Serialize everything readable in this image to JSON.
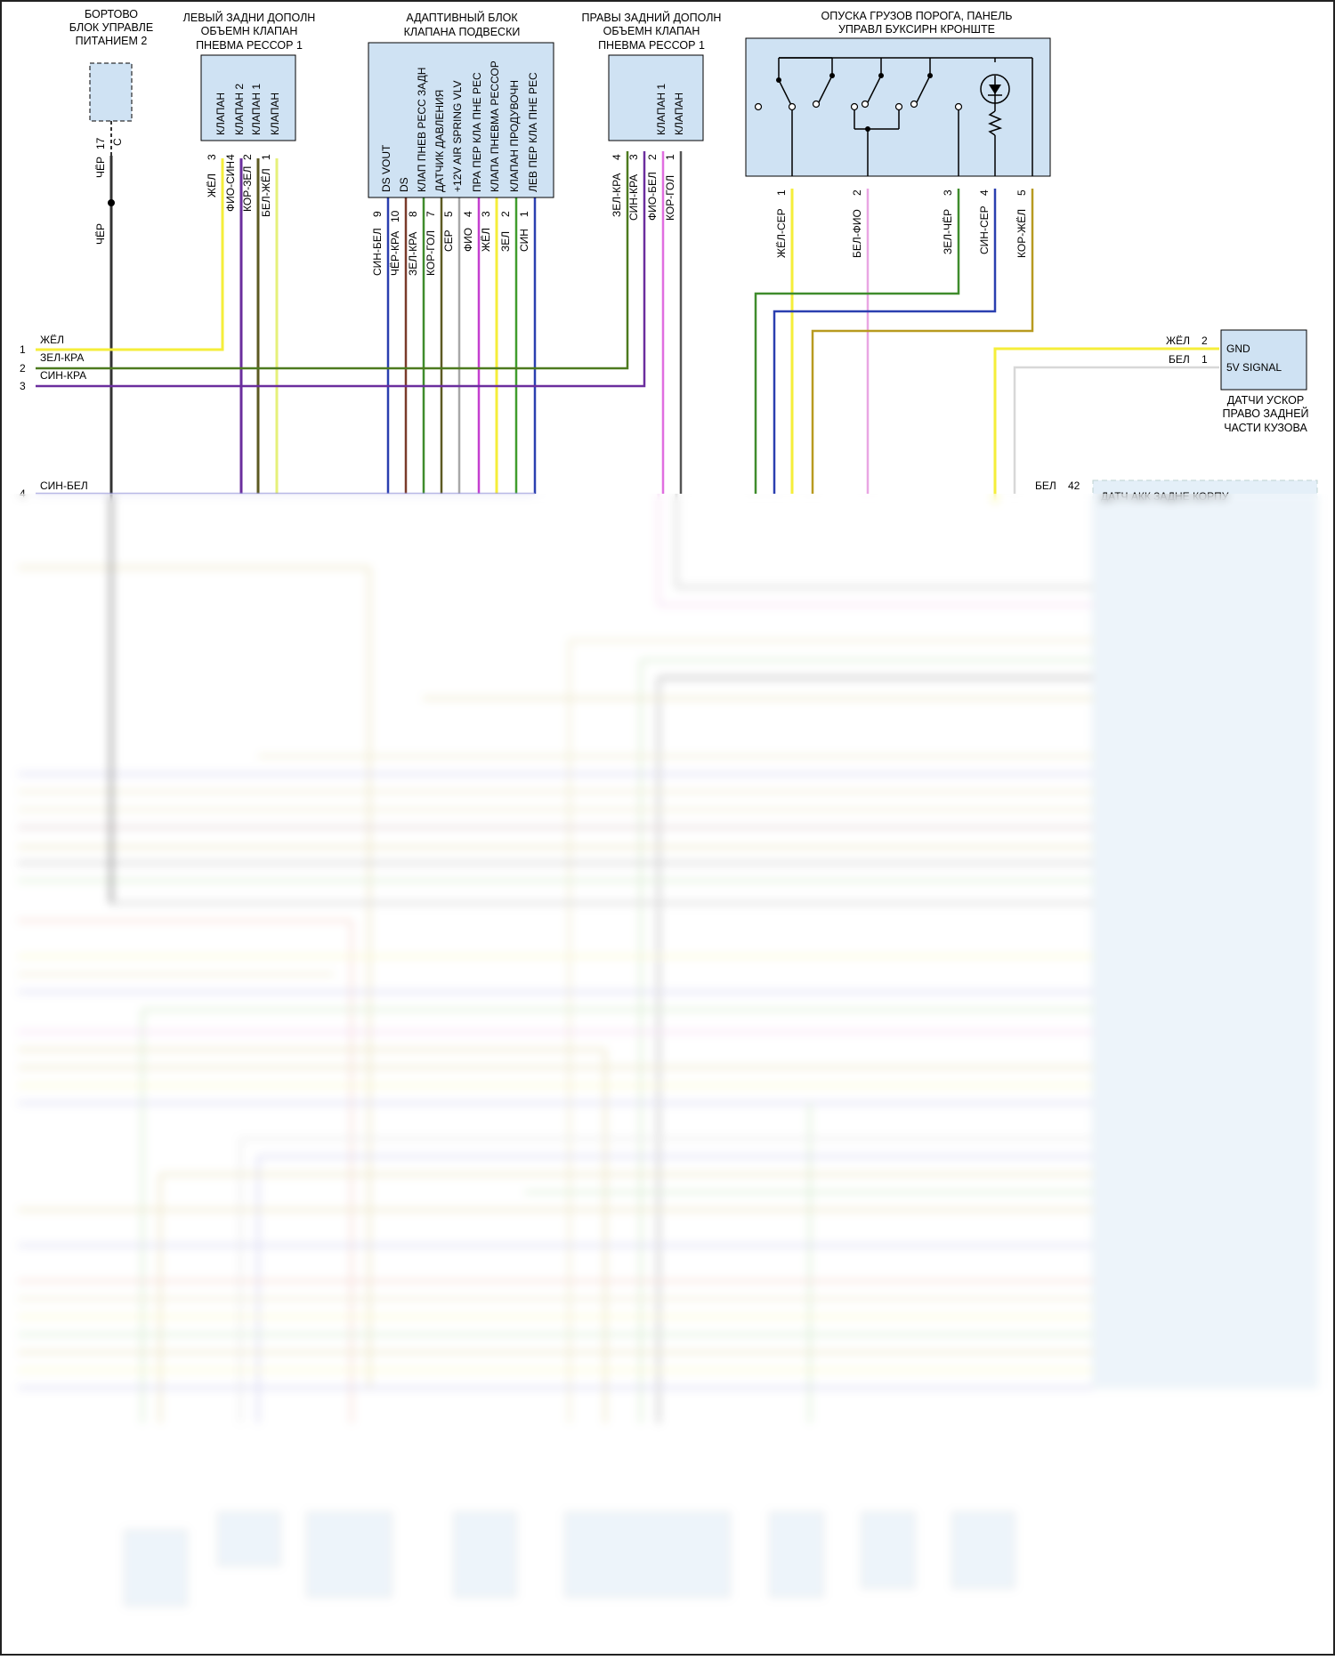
{
  "components": {
    "power_module": {
      "line1": "БОРТОВО",
      "line2": "БЛОК УПРАВЛЕ",
      "line3": "ПИТАНИЕМ 2"
    },
    "left_valve": {
      "line1": "ЛЕВЫЙ ЗАДНИ ДОПОЛН",
      "line2": "ОБЪЕМН КЛАПАН",
      "line3": "ПНЕВМА РЕССОР 1",
      "pins": [
        "КЛАПАН",
        "КЛАПАН 2",
        "КЛАПАН 1",
        "КЛАПАН"
      ]
    },
    "adaptive_block": {
      "line1": "АДАПТИВНЫЙ БЛОК",
      "line2": "КЛАПАНА ПОДВЕСКИ",
      "pins": [
        "DS VOUT",
        "DS",
        "КЛАП ПНЕВ РЕСС ЗАДН",
        "ДАТЧИК ДАВЛЕНИЯ",
        "+12V AIR SPRING VLV",
        "ПРА ПЕР КЛА ПНЕ РЕС",
        "КЛАПА ПНЕВМА РЕССОР",
        "КЛАПАН ПРОДУВОЧН",
        "ЛЕВ ПЕР КЛА ПНЕ РЕС"
      ]
    },
    "right_valve": {
      "line1": "ПРАВЫ ЗАДНИЙ ДОПОЛН",
      "line2": "ОБЪЕМН КЛАПАН",
      "line3": "ПНЕВМА РЕССОР 1",
      "pins": [
        "КЛАПАН 1",
        "КЛАПАН"
      ]
    },
    "tow_panel": {
      "line1": "ОПУСКА ГРУЗОВ ПОРОГА, ПАНЕЛЬ",
      "line2": "УПРАВЛ БУКСИРН КРОНШТЕ"
    },
    "accel_sensor": {
      "pins": [
        "GND",
        "5V SIGNAL"
      ],
      "line1": "ДАТЧИ УСКОР",
      "line2": "ПРАВО ЗАДНЕЙ",
      "line3": "ЧАСТИ КУЗОВА"
    },
    "rear_module": {
      "title": "ДАТЧ АКК ЗАДНЕ КОРПУ"
    }
  },
  "wires": {
    "pm_top": {
      "pin": "17",
      "conn": "C",
      "color": "ЧЁР"
    },
    "pm_bottom": {
      "color": "ЧЁР"
    },
    "left_valve": [
      {
        "pin": "3",
        "color": "ЖЁЛ"
      },
      {
        "pin": "4",
        "color": "ФИО-СИН"
      },
      {
        "pin": "2",
        "color": "КОР-ЗЕЛ"
      },
      {
        "pin": "1",
        "color": "БЕЛ-ЖЁЛ"
      }
    ],
    "adaptive_block": [
      {
        "pin": "9",
        "color": "СИН-БЕЛ"
      },
      {
        "pin": "10",
        "color": "ЧЁР-КРА"
      },
      {
        "pin": "8",
        "color": "ЗЕЛ-КРА"
      },
      {
        "pin": "7",
        "color": "КОР-ГОЛ"
      },
      {
        "pin": "5",
        "color": "СЕР"
      },
      {
        "pin": "4",
        "color": "ФИО"
      },
      {
        "pin": "3",
        "color": "ЖЁЛ"
      },
      {
        "pin": "2",
        "color": "ЗЕЛ"
      },
      {
        "pin": "1",
        "color": "СИН"
      }
    ],
    "right_valve": [
      {
        "pin": "4",
        "color": "ЗЕЛ-КРА"
      },
      {
        "pin": "3",
        "color": "СИН-КРА"
      },
      {
        "pin": "2",
        "color": "ФИО-БЕЛ"
      },
      {
        "pin": "1",
        "color": "КОР-ГОЛ"
      }
    ],
    "tow_panel": [
      {
        "pin": "1",
        "color": "ЖЁЛ-СЕР"
      },
      {
        "pin": "2",
        "color": "БЕЛ-ФИО"
      },
      {
        "pin": "3",
        "color": "ЗЕЛ-ЧЁР"
      },
      {
        "pin": "4",
        "color": "СИН-СЕР"
      },
      {
        "pin": "5",
        "color": "КОР-ЖЁЛ"
      }
    ],
    "accel_sensor": [
      {
        "color": "ЖЁЛ",
        "pin": "2"
      },
      {
        "color": "БЕЛ",
        "pin": "1"
      }
    ],
    "left_rows": [
      {
        "n": "1",
        "color": "ЖЁЛ"
      },
      {
        "n": "2",
        "color": "ЗЕЛ-КРА"
      },
      {
        "n": "3",
        "color": "СИН-КРА"
      },
      {
        "n": "4",
        "color": "СИН-БЕЛ"
      }
    ],
    "rear_module_pin": {
      "color": "БЕЛ",
      "pin": "42"
    }
  },
  "colors": {
    "yellow": "#f5ee3a",
    "green": "#3f8c2c",
    "purple": "#6b2e9e",
    "violet": "#9b2fc5",
    "blue": "#2a3fb0",
    "brown": "#6b5a2a",
    "olive": "#7a6a24",
    "black": "#333333",
    "gray": "#a8a8a8",
    "darkred": "#7a2a2a",
    "magenta": "#d24ed8",
    "pink": "#e9a6e3",
    "lightyellow": "#eef07a",
    "box": "#cfe2f3",
    "gold": "#b89a20",
    "lime": "#4aa63a"
  }
}
